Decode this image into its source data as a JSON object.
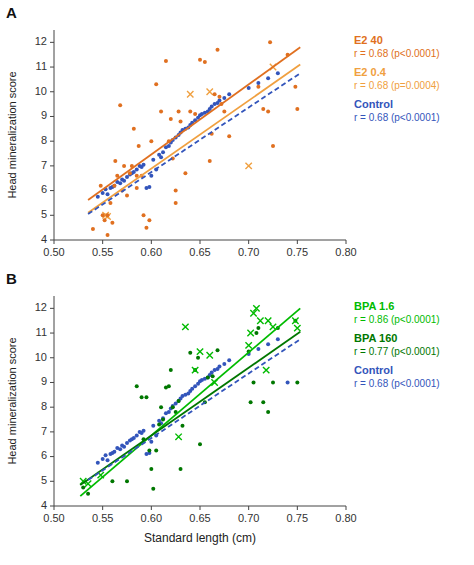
{
  "chart_data": [
    {
      "type": "scatter",
      "title": "A",
      "ylabel": "Head mineralization score",
      "xlim": [
        0.5,
        0.8
      ],
      "ylim": [
        4.0,
        12.5
      ],
      "xticks": [
        {
          "value": 0.5,
          "label": "0.50"
        },
        0.55,
        {
          "value": 0.6,
          "label": "0.60"
        },
        0.65,
        {
          "value": 0.7,
          "label": "0.70"
        },
        0.75,
        {
          "value": 0.8,
          "label": "0.80"
        }
      ],
      "yticks": [
        4,
        5,
        6,
        7,
        8,
        9,
        10,
        11,
        12
      ],
      "grid": false,
      "legend": "right",
      "series": [
        {
          "name": "E2 40",
          "annotation": "r = 0.68 (p<0.0001)",
          "color": "#E07020",
          "marker": "circle",
          "x": [
            0.54,
            0.548,
            0.55,
            0.552,
            0.555,
            0.555,
            0.558,
            0.56,
            0.562,
            0.563,
            0.565,
            0.568,
            0.57,
            0.572,
            0.575,
            0.578,
            0.58,
            0.582,
            0.585,
            0.585,
            0.587,
            0.59,
            0.592,
            0.595,
            0.598,
            0.6,
            0.605,
            0.61,
            0.615,
            0.618,
            0.62,
            0.622,
            0.625,
            0.625,
            0.628,
            0.63,
            0.635,
            0.64,
            0.645,
            0.65,
            0.655,
            0.66,
            0.662,
            0.665,
            0.668,
            0.67,
            0.672,
            0.675,
            0.68,
            0.71,
            0.715,
            0.72,
            0.722,
            0.725,
            0.74,
            0.748,
            0.75
          ],
          "values": [
            4.45,
            6.2,
            5.0,
            4.8,
            5.0,
            4.2,
            5.5,
            4.7,
            6.2,
            7.2,
            6.6,
            9.45,
            6.0,
            7.0,
            5.8,
            6.7,
            7.0,
            8.5,
            6.1,
            6.6,
            7.8,
            6.6,
            5.0,
            4.5,
            4.8,
            8.0,
            10.3,
            9.2,
            11.25,
            8.0,
            8.9,
            7.3,
            6.0,
            5.5,
            9.2,
            8.8,
            6.7,
            9.2,
            9.1,
            11.3,
            11.2,
            7.2,
            8.3,
            9.9,
            11.7,
            9.8,
            9.5,
            9.2,
            8.2,
            10.2,
            9.3,
            9.2,
            12.0,
            7.8,
            11.5,
            10.2,
            9.3
          ],
          "trend": {
            "x": [
              0.535,
              0.753
            ],
            "values": [
              5.62,
              11.8
            ],
            "line_style": "solid"
          }
        },
        {
          "name": "E2 0.4",
          "annotation": "r = 0.68 (p=0.0004)",
          "color": "#F0A040",
          "marker": "x",
          "x": [
            0.553,
            0.555,
            0.64,
            0.66,
            0.7,
            0.725
          ],
          "values": [
            5.0,
            4.95,
            9.9,
            10.0,
            7.0,
            11.0
          ],
          "trend": {
            "x": [
              0.535,
              0.753
            ],
            "values": [
              5.1,
              11.1
            ],
            "line_style": "solid"
          }
        },
        {
          "name": "Control",
          "annotation": "r = 0.68 (p<0.0001)",
          "color": "#3355BB",
          "marker": "circle",
          "x": [
            0.545,
            0.55,
            0.553,
            0.555,
            0.558,
            0.56,
            0.562,
            0.565,
            0.568,
            0.57,
            0.572,
            0.575,
            0.578,
            0.58,
            0.582,
            0.585,
            0.588,
            0.59,
            0.592,
            0.595,
            0.598,
            0.6,
            0.602,
            0.605,
            0.608,
            0.61,
            0.612,
            0.615,
            0.618,
            0.62,
            0.622,
            0.625,
            0.628,
            0.63,
            0.632,
            0.635,
            0.638,
            0.64,
            0.642,
            0.645,
            0.648,
            0.65,
            0.652,
            0.655,
            0.658,
            0.66,
            0.662,
            0.665,
            0.668,
            0.67,
            0.675,
            0.68,
            0.7,
            0.71,
            0.72,
            0.73
          ],
          "values": [
            5.75,
            5.9,
            6.05,
            5.85,
            6.1,
            6.15,
            6.2,
            6.35,
            6.3,
            6.45,
            6.4,
            6.55,
            6.65,
            6.7,
            6.75,
            6.85,
            7.0,
            6.95,
            7.05,
            6.1,
            6.15,
            6.6,
            7.25,
            6.85,
            7.45,
            7.35,
            7.55,
            7.75,
            7.8,
            7.95,
            8.05,
            8.15,
            8.25,
            8.35,
            8.45,
            8.5,
            8.55,
            8.65,
            8.75,
            8.85,
            8.95,
            9.05,
            9.1,
            9.15,
            9.2,
            9.3,
            9.4,
            9.5,
            9.55,
            9.65,
            9.75,
            9.9,
            10.15,
            10.35,
            10.55,
            10.75
          ],
          "trend": {
            "x": [
              0.535,
              0.753
            ],
            "values": [
              5.05,
              10.75
            ],
            "line_style": "dashed"
          }
        }
      ]
    },
    {
      "type": "scatter",
      "title": "B",
      "xlabel": "Standard length (cm)",
      "ylabel": "Head mineralization score",
      "xlim": [
        0.5,
        0.8
      ],
      "ylim": [
        4.0,
        12.5
      ],
      "xticks": [
        {
          "value": 0.5,
          "label": "0.50"
        },
        0.55,
        {
          "value": 0.6,
          "label": "0.60"
        },
        0.65,
        {
          "value": 0.7,
          "label": "0.70"
        },
        0.75,
        {
          "value": 0.8,
          "label": "0.80"
        }
      ],
      "yticks": [
        4,
        5,
        6,
        7,
        8,
        9,
        10,
        11,
        12
      ],
      "grid": false,
      "legend": "right",
      "series": [
        {
          "name": "BPA 1.6",
          "annotation": "r = 0.86 (p<0.0001)",
          "color": "#00BB00",
          "marker": "x",
          "x": [
            0.53,
            0.535,
            0.548,
            0.628,
            0.635,
            0.645,
            0.65,
            0.66,
            0.665,
            0.7,
            0.702,
            0.705,
            0.708,
            0.712,
            0.718,
            0.72,
            0.725,
            0.748,
            0.75
          ],
          "values": [
            5.0,
            4.9,
            5.25,
            6.8,
            11.25,
            9.5,
            10.25,
            10.1,
            9.0,
            10.5,
            11.0,
            11.8,
            12.0,
            11.5,
            9.5,
            11.5,
            11.25,
            11.5,
            11.2
          ],
          "trend": {
            "x": [
              0.527,
              0.753
            ],
            "values": [
              4.4,
              12.0
            ],
            "line_style": "solid"
          }
        },
        {
          "name": "BPA 160",
          "annotation": "r = 0.77 (p<0.0001)",
          "color": "#007700",
          "marker": "circle",
          "x": [
            0.53,
            0.535,
            0.56,
            0.575,
            0.585,
            0.59,
            0.592,
            0.595,
            0.598,
            0.6,
            0.602,
            0.605,
            0.608,
            0.61,
            0.612,
            0.615,
            0.618,
            0.62,
            0.622,
            0.625,
            0.628,
            0.63,
            0.632,
            0.64,
            0.645,
            0.648,
            0.65,
            0.655,
            0.658,
            0.663,
            0.668,
            0.7,
            0.702,
            0.705,
            0.708,
            0.71,
            0.715,
            0.72,
            0.725,
            0.73,
            0.748,
            0.75
          ],
          "values": [
            4.75,
            4.5,
            5.0,
            5.0,
            8.85,
            8.4,
            6.7,
            8.4,
            6.25,
            5.5,
            4.7,
            6.25,
            7.3,
            8.0,
            7.5,
            8.8,
            8.85,
            9.5,
            8.0,
            7.8,
            8.25,
            5.5,
            7.25,
            10.2,
            9.5,
            10.0,
            6.5,
            8.2,
            9.2,
            9.25,
            10.3,
            10.25,
            8.2,
            9.0,
            11.0,
            11.2,
            8.2,
            7.8,
            9.0,
            11.2,
            11.5,
            9.0
          ],
          "trend": {
            "x": [
              0.527,
              0.753
            ],
            "values": [
              4.85,
              11.05
            ],
            "line_style": "solid"
          }
        },
        {
          "name": "Control",
          "annotation": "r = 0.68 (p<0.0001)",
          "color": "#3355BB",
          "marker": "circle",
          "x": [
            0.545,
            0.55,
            0.553,
            0.555,
            0.558,
            0.56,
            0.562,
            0.565,
            0.568,
            0.57,
            0.572,
            0.575,
            0.578,
            0.58,
            0.582,
            0.585,
            0.588,
            0.59,
            0.592,
            0.595,
            0.598,
            0.6,
            0.602,
            0.605,
            0.608,
            0.61,
            0.612,
            0.615,
            0.618,
            0.62,
            0.622,
            0.625,
            0.628,
            0.63,
            0.632,
            0.635,
            0.638,
            0.64,
            0.642,
            0.645,
            0.648,
            0.65,
            0.652,
            0.655,
            0.658,
            0.66,
            0.662,
            0.665,
            0.668,
            0.67,
            0.675,
            0.68,
            0.7,
            0.71,
            0.72,
            0.73,
            0.74
          ],
          "values": [
            5.75,
            5.9,
            6.05,
            5.85,
            6.1,
            6.15,
            6.2,
            6.35,
            6.3,
            6.45,
            6.4,
            6.55,
            6.65,
            6.7,
            6.75,
            6.85,
            7.0,
            6.95,
            7.05,
            6.1,
            6.15,
            6.6,
            7.25,
            6.85,
            7.45,
            7.35,
            7.55,
            7.75,
            7.8,
            7.95,
            8.05,
            8.15,
            8.25,
            8.35,
            8.45,
            8.5,
            8.55,
            8.65,
            8.75,
            8.85,
            8.95,
            9.05,
            9.1,
            9.15,
            9.2,
            9.3,
            9.4,
            9.5,
            9.55,
            9.65,
            9.75,
            9.9,
            10.15,
            10.35,
            10.55,
            10.75,
            9.0
          ],
          "trend": {
            "x": [
              0.535,
              0.753
            ],
            "values": [
              5.05,
              10.75
            ],
            "line_style": "dashed"
          }
        }
      ]
    }
  ]
}
